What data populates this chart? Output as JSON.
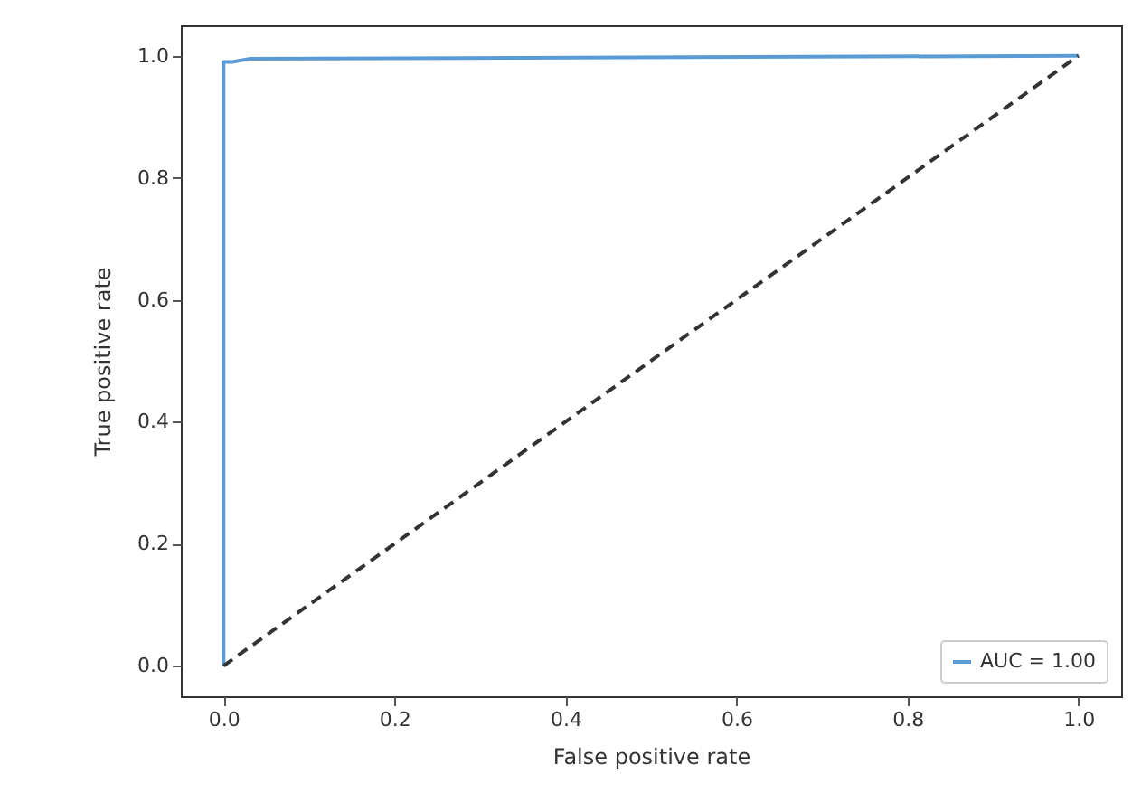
{
  "chart_data": {
    "type": "line",
    "xlabel": "False positive rate",
    "ylabel": "True positive rate",
    "xlim": [
      -0.05,
      1.05
    ],
    "ylim": [
      -0.05,
      1.05
    ],
    "xticks": [
      {
        "value": 0,
        "label": "0.0"
      },
      {
        "value": 0.2,
        "label": "0.2"
      },
      {
        "value": 0.4,
        "label": "0.4"
      },
      {
        "value": 0.6,
        "label": "0.6"
      },
      {
        "value": 0.8,
        "label": "0.8"
      },
      {
        "value": 1,
        "label": "1.0"
      }
    ],
    "yticks": [
      {
        "value": 0,
        "label": "0.0"
      },
      {
        "value": 0.2,
        "label": "0.2"
      },
      {
        "value": 0.4,
        "label": "0.4"
      },
      {
        "value": 0.6,
        "label": "0.6"
      },
      {
        "value": 0.8,
        "label": "0.8"
      },
      {
        "value": 1,
        "label": "1.0"
      }
    ],
    "grid": false,
    "legend": "bottom right",
    "series": [
      {
        "name": "AUC = 1.00",
        "color": "#5b9bd5",
        "x": [
          0,
          0,
          0.01,
          0.03,
          1
        ],
        "values": [
          0,
          0.99,
          0.99,
          0.995,
          1
        ],
        "line_style": "solid"
      },
      {
        "color": "#333333",
        "x": [
          0,
          1
        ],
        "values": [
          0,
          1
        ],
        "line_style": "dashed"
      }
    ]
  }
}
